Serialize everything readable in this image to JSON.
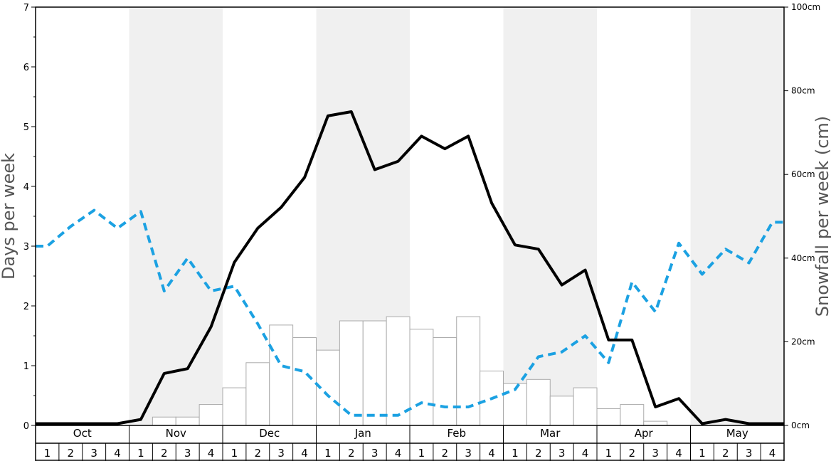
{
  "chart_data": {
    "type": "bar+line",
    "left_axis": {
      "label": "Days per week",
      "ylim": [
        0,
        7
      ],
      "ticks": [
        "0",
        "1",
        "2",
        "3",
        "4",
        "5",
        "6",
        "7"
      ]
    },
    "right_axis": {
      "label": "Snowfall per week (cm)",
      "ylim": [
        0,
        100
      ],
      "ticks": [
        "0cm",
        "20cm",
        "40cm",
        "60cm",
        "80cm",
        "100cm"
      ]
    },
    "months": [
      "Oct",
      "Nov",
      "Dec",
      "Jan",
      "Feb",
      "Mar",
      "Apr",
      "May"
    ],
    "weeks": [
      "1",
      "2",
      "3",
      "4"
    ],
    "shaded_months": [
      "Nov",
      "Jan",
      "Mar",
      "May"
    ],
    "colors": {
      "shade": "#f0f0f0",
      "bar_fill": "#ffffff",
      "bar_stroke": "#aaaaaa",
      "solid_line": "#000000",
      "dashed_line": "#1ba1e2"
    },
    "snowfall_cm": [
      0,
      0,
      0,
      0,
      0,
      2,
      2,
      5,
      9,
      15,
      24,
      21,
      18,
      25,
      25,
      26,
      23,
      21,
      26,
      13,
      10,
      11,
      7,
      9,
      4,
      5,
      1,
      0,
      0,
      0,
      0,
      0
    ],
    "solid_days": [
      0.03,
      0.03,
      0.03,
      0.03,
      0.1,
      0.87,
      0.95,
      1.65,
      2.73,
      3.3,
      3.65,
      4.15,
      5.18,
      5.25,
      4.28,
      4.42,
      4.84,
      4.63,
      4.84,
      3.72,
      3.02,
      2.95,
      2.35,
      2.6,
      1.43,
      1.43,
      0.31,
      0.45,
      0.03,
      0.1,
      0.03,
      0.03
    ],
    "dashed_days": [
      3.0,
      3.33,
      3.6,
      3.3,
      3.58,
      2.25,
      2.8,
      2.25,
      2.33,
      1.7,
      1.0,
      0.9,
      0.5,
      0.17,
      0.17,
      0.17,
      0.38,
      0.31,
      0.31,
      0.45,
      0.6,
      1.15,
      1.23,
      1.5,
      1.05,
      2.4,
      1.9,
      3.05,
      2.53,
      2.95,
      2.72,
      3.4
    ]
  }
}
